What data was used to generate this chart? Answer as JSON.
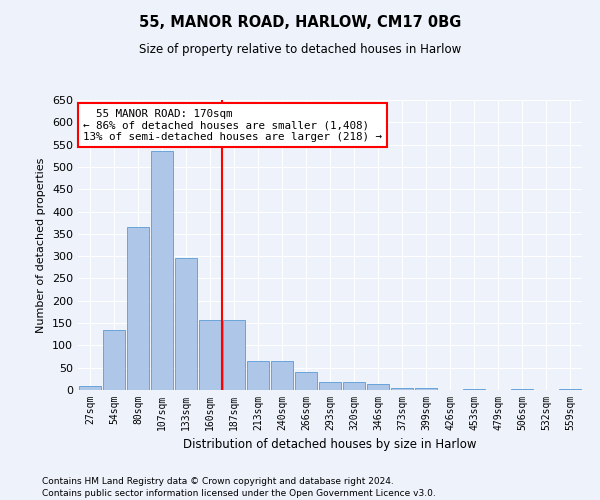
{
  "title1": "55, MANOR ROAD, HARLOW, CM17 0BG",
  "title2": "Size of property relative to detached houses in Harlow",
  "xlabel": "Distribution of detached houses by size in Harlow",
  "ylabel": "Number of detached properties",
  "categories": [
    "27sqm",
    "54sqm",
    "80sqm",
    "107sqm",
    "133sqm",
    "160sqm",
    "187sqm",
    "213sqm",
    "240sqm",
    "266sqm",
    "293sqm",
    "320sqm",
    "346sqm",
    "373sqm",
    "399sqm",
    "426sqm",
    "453sqm",
    "479sqm",
    "506sqm",
    "532sqm",
    "559sqm"
  ],
  "values": [
    10,
    135,
    365,
    535,
    295,
    158,
    158,
    65,
    65,
    40,
    18,
    18,
    13,
    5,
    5,
    0,
    3,
    0,
    3,
    0,
    3
  ],
  "bar_color": "#aec6e8",
  "bar_edge_color": "#5a9bd5",
  "red_line_index": 6,
  "annotation_text": "  55 MANOR ROAD: 170sqm\n← 86% of detached houses are smaller (1,408)\n13% of semi-detached houses are larger (218) →",
  "footnote1": "Contains HM Land Registry data © Crown copyright and database right 2024.",
  "footnote2": "Contains public sector information licensed under the Open Government Licence v3.0.",
  "ylim": [
    0,
    650
  ],
  "yticks": [
    0,
    50,
    100,
    150,
    200,
    250,
    300,
    350,
    400,
    450,
    500,
    550,
    600,
    650
  ],
  "bg_color": "#eef2fb",
  "plot_bg_color": "#eef2fb"
}
